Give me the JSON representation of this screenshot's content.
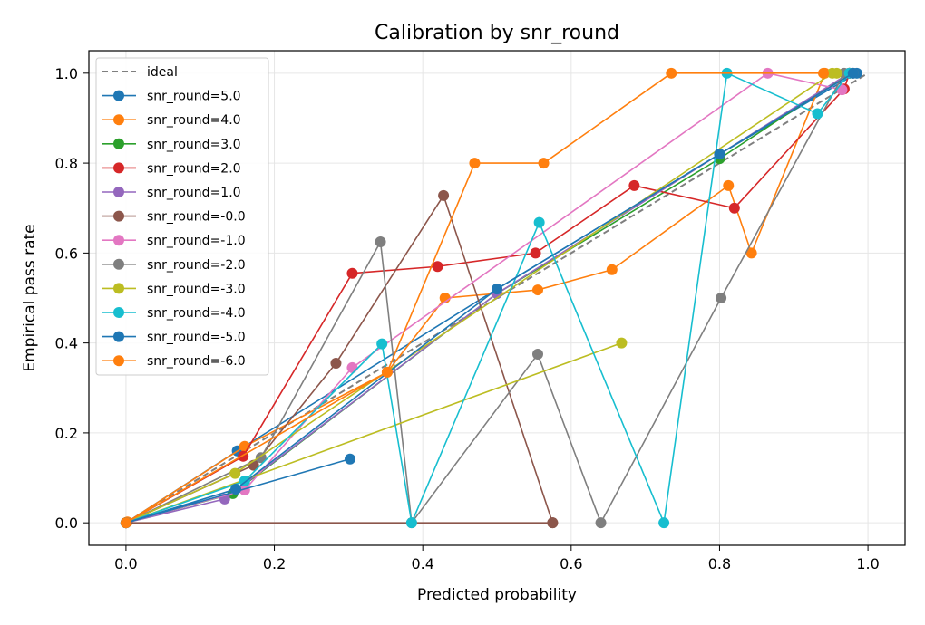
{
  "chart_data": {
    "type": "line",
    "title": "Calibration by snr_round",
    "xlabel": "Predicted probability",
    "ylabel": "Empirical pass rate",
    "xlim": [
      -0.05,
      1.05
    ],
    "ylim": [
      -0.05,
      1.05
    ],
    "xticks": [
      0.0,
      0.2,
      0.4,
      0.6,
      0.8,
      1.0
    ],
    "yticks": [
      0.0,
      0.2,
      0.4,
      0.6,
      0.8,
      1.0
    ],
    "xtick_labels": [
      "0.0",
      "0.2",
      "0.4",
      "0.6",
      "0.8",
      "1.0"
    ],
    "ytick_labels": [
      "0.0",
      "0.2",
      "0.4",
      "0.6",
      "0.8",
      "1.0"
    ],
    "grid": true,
    "legend_position": "upper-left",
    "ideal": {
      "name": "ideal",
      "color": "#7f7f7f",
      "style": "dashed",
      "points": [
        [
          0,
          0
        ],
        [
          1,
          1
        ]
      ]
    },
    "series": [
      {
        "name": "snr_round=5.0",
        "color": "#1f77b4",
        "points": [
          [
            0.0,
            0.0
          ],
          [
            0.15,
            0.16
          ],
          [
            0.5,
            0.52
          ],
          [
            0.8,
            0.82
          ],
          [
            0.985,
            1.0
          ]
        ]
      },
      {
        "name": "snr_round=4.0",
        "color": "#ff7f0e",
        "points": [
          [
            0.002,
            0.002
          ],
          [
            0.16,
            0.17
          ],
          [
            0.352,
            0.335
          ],
          [
            0.43,
            0.5
          ],
          [
            0.555,
            0.518
          ],
          [
            0.655,
            0.563
          ],
          [
            0.812,
            0.75
          ],
          [
            0.843,
            0.6
          ],
          [
            0.942,
            1.0
          ],
          [
            0.975,
            1.0
          ]
        ]
      },
      {
        "name": "snr_round=3.0",
        "color": "#2ca02c",
        "points": [
          [
            0.0,
            0.0
          ],
          [
            0.144,
            0.065
          ],
          [
            0.5,
            0.51
          ],
          [
            0.8,
            0.81
          ],
          [
            0.975,
            1.0
          ]
        ]
      },
      {
        "name": "snr_round=2.0",
        "color": "#d62728",
        "points": [
          [
            0.0,
            0.0
          ],
          [
            0.158,
            0.148
          ],
          [
            0.305,
            0.555
          ],
          [
            0.42,
            0.57
          ],
          [
            0.552,
            0.6
          ],
          [
            0.685,
            0.75
          ],
          [
            0.82,
            0.7
          ],
          [
            0.968,
            0.965
          ],
          [
            0.975,
            1.0
          ]
        ]
      },
      {
        "name": "snr_round=1.0",
        "color": "#9467bd",
        "points": [
          [
            0.0,
            0.0
          ],
          [
            0.133,
            0.053
          ],
          [
            0.5,
            0.51
          ],
          [
            0.8,
            0.82
          ],
          [
            0.975,
            1.0
          ]
        ]
      },
      {
        "name": "snr_round=-0.0",
        "color": "#8c564b",
        "points": [
          [
            0.575,
            0.0
          ],
          [
            0.0,
            0.0
          ],
          [
            0.172,
            0.128
          ],
          [
            0.283,
            0.355
          ],
          [
            0.428,
            0.728
          ],
          [
            0.575,
            0.0
          ]
        ]
      },
      {
        "name": "snr_round=-1.0",
        "color": "#e377c2",
        "points": [
          [
            0.0,
            0.0
          ],
          [
            0.16,
            0.073
          ],
          [
            0.305,
            0.345
          ],
          [
            0.865,
            1.0
          ],
          [
            0.965,
            0.963
          ]
        ]
      },
      {
        "name": "snr_round=-2.0",
        "color": "#7f7f7f",
        "points": [
          [
            0.0,
            0.0
          ],
          [
            0.182,
            0.145
          ],
          [
            0.343,
            0.625
          ],
          [
            0.385,
            0.0
          ],
          [
            0.555,
            0.375
          ],
          [
            0.64,
            0.0
          ],
          [
            0.802,
            0.5
          ],
          [
            0.968,
            1.0
          ],
          [
            0.98,
            1.0
          ]
        ]
      },
      {
        "name": "snr_round=-3.0",
        "color": "#bcbd22",
        "points": [
          [
            0.668,
            0.4
          ],
          [
            0.0,
            0.0
          ],
          [
            0.147,
            0.11
          ],
          [
            0.952,
            1.0
          ],
          [
            0.958,
            1.0
          ]
        ]
      },
      {
        "name": "snr_round=-4.0",
        "color": "#17becf",
        "points": [
          [
            0.0,
            0.0
          ],
          [
            0.16,
            0.093
          ],
          [
            0.345,
            0.398
          ],
          [
            0.385,
            0.0
          ],
          [
            0.557,
            0.668
          ],
          [
            0.725,
            0.0
          ],
          [
            0.81,
            1.0
          ],
          [
            0.932,
            0.91
          ],
          [
            0.975,
            1.0
          ]
        ]
      },
      {
        "name": "snr_round=-5.0",
        "color": "#1f77b4",
        "points": [
          [
            0.302,
            0.142
          ],
          [
            0.0,
            0.0
          ],
          [
            0.148,
            0.075
          ],
          [
            0.5,
            0.52
          ],
          [
            0.8,
            0.82
          ],
          [
            0.98,
            1.0
          ]
        ]
      },
      {
        "name": "snr_round=-6.0",
        "color": "#ff7f0e",
        "points": [
          [
            0.0,
            0.0
          ],
          [
            0.352,
            0.335
          ],
          [
            0.47,
            0.8
          ],
          [
            0.563,
            0.8
          ],
          [
            0.735,
            1.0
          ],
          [
            0.94,
            1.0
          ]
        ]
      }
    ]
  }
}
